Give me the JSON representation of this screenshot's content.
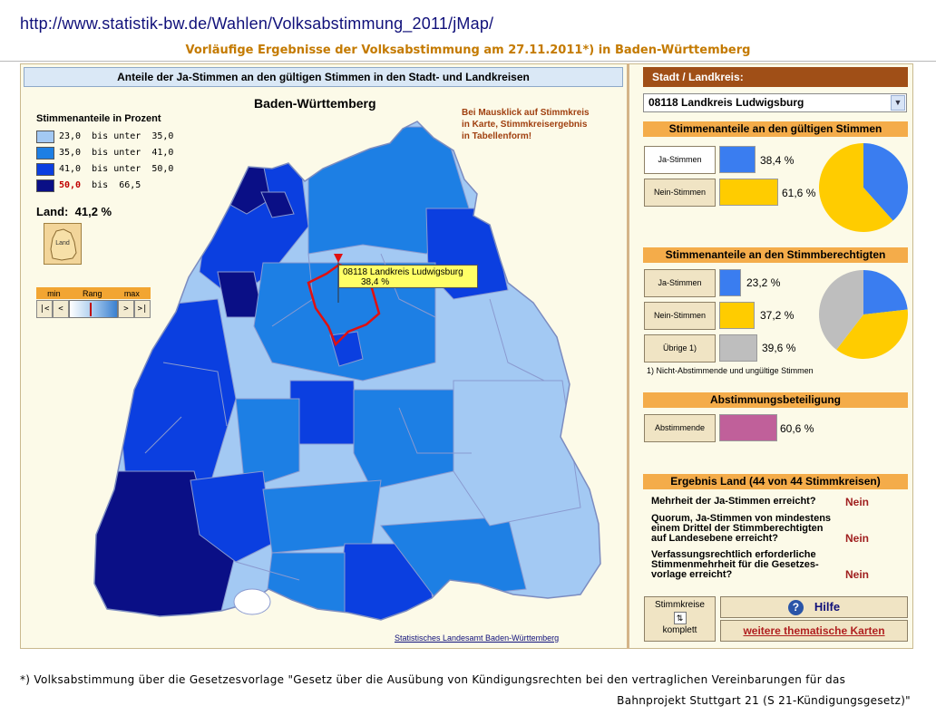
{
  "url": "http://www.statistik-bw.de/Wahlen/Volksabstimmung_2011/jMap/",
  "subtitle": "Vorläufige Ergebnisse der Volksabstimmung am 27.11.2011*) in Baden-Württemberg",
  "map_panel": {
    "header": "Anteile der Ja-Stimmen an den gültigen Stimmen in den Stadt- und Landkreisen",
    "map_title": "Baden-Württemberg",
    "legend_title": "Stimmenanteile in Prozent",
    "legend": [
      {
        "low": "23,0",
        "sep": "bis unter",
        "high": "35,0",
        "color": "#a3c9f3"
      },
      {
        "low": "35,0",
        "sep": "bis unter",
        "high": "41,0",
        "color": "#1d7fe4"
      },
      {
        "low": "41,0",
        "sep": "bis unter",
        "high": "50,0",
        "color": "#0b3fe0"
      },
      {
        "low": "50,0",
        "sep": "bis",
        "high": "66,5",
        "color": "#0a0f86"
      }
    ],
    "land_label": "Land:",
    "land_value": "41,2 %",
    "land_button_label": "Land",
    "rang": {
      "min": "min",
      "label": "Rang",
      "max": "max",
      "buttons": [
        "|<",
        "<",
        ">",
        ">|"
      ]
    },
    "hint": "Bei Mausklick auf Stimmkreis\nin Karte, Stimmkreisergebnis\nin Tabellenform!",
    "tooltip": {
      "name": "08118 Landkreis Ludwigsburg",
      "value": "38,4 %"
    },
    "credit": "Statistisches Landesamt Baden-Württemberg"
  },
  "right_panel": {
    "header": "Stadt / Landkreis:",
    "selected_district": "08118 Landkreis Ludwigsburg",
    "valid_votes": {
      "title": "Stimmenanteile an den gültigen Stimmen",
      "rows": [
        {
          "label": "Ja-Stimmen",
          "value": "38,4 %",
          "share": 38.4,
          "color": "#3a7df0"
        },
        {
          "label": "Nein-Stimmen",
          "value": "61,6 %",
          "share": 61.6,
          "color": "#ffcc00"
        }
      ]
    },
    "eligible_votes": {
      "title": "Stimmenanteile an den Stimmberechtigten",
      "rows": [
        {
          "label": "Ja-Stimmen",
          "value": "23,2 %",
          "share": 23.2,
          "color": "#3a7df0"
        },
        {
          "label": "Nein-Stimmen",
          "value": "37,2 %",
          "share": 37.2,
          "color": "#ffcc00"
        },
        {
          "label": "Übrige 1)",
          "value": "39,6 %",
          "share": 39.6,
          "color": "#bebebe"
        }
      ],
      "note": "1) Nicht-Abstimmende und ungültige Stimmen"
    },
    "turnout": {
      "title": "Abstimmungsbeteiligung",
      "label": "Abstimmende",
      "value": "60,6 %",
      "share": 60.6,
      "color": "#c0609a"
    },
    "land_result": {
      "title": "Ergebnis Land  (44 von 44 Stimmkreisen)",
      "items": [
        {
          "question": "Mehrheit der Ja-Stimmen erreicht?",
          "answer": "Nein"
        },
        {
          "question": "Quorum, Ja-Stimmen von mindestens\neinem Drittel der Stimmberechtigten\nauf Landesebene erreicht?",
          "answer": "Nein"
        },
        {
          "question": "Verfassungsrechtlich erforderliche\nStimmenmehrheit für die Gesetzes-\nvorlage erreicht?",
          "answer": "Nein"
        }
      ]
    },
    "stimmkreise_button": {
      "line1": "Stimmkreise",
      "line2": "komplett"
    },
    "help_label": "Hilfe",
    "more_maps_label": "weitere thematische Karten"
  },
  "footnote_line1": "*) Volksabstimmung über die Gesetzesvorlage \"Gesetz über die Ausübung von Kündigungsrechten bei den vertraglichen Vereinbarungen für das",
  "footnote_line2": "Bahnprojekt Stuttgart 21 (S 21-Kündigungsgesetz)\""
}
